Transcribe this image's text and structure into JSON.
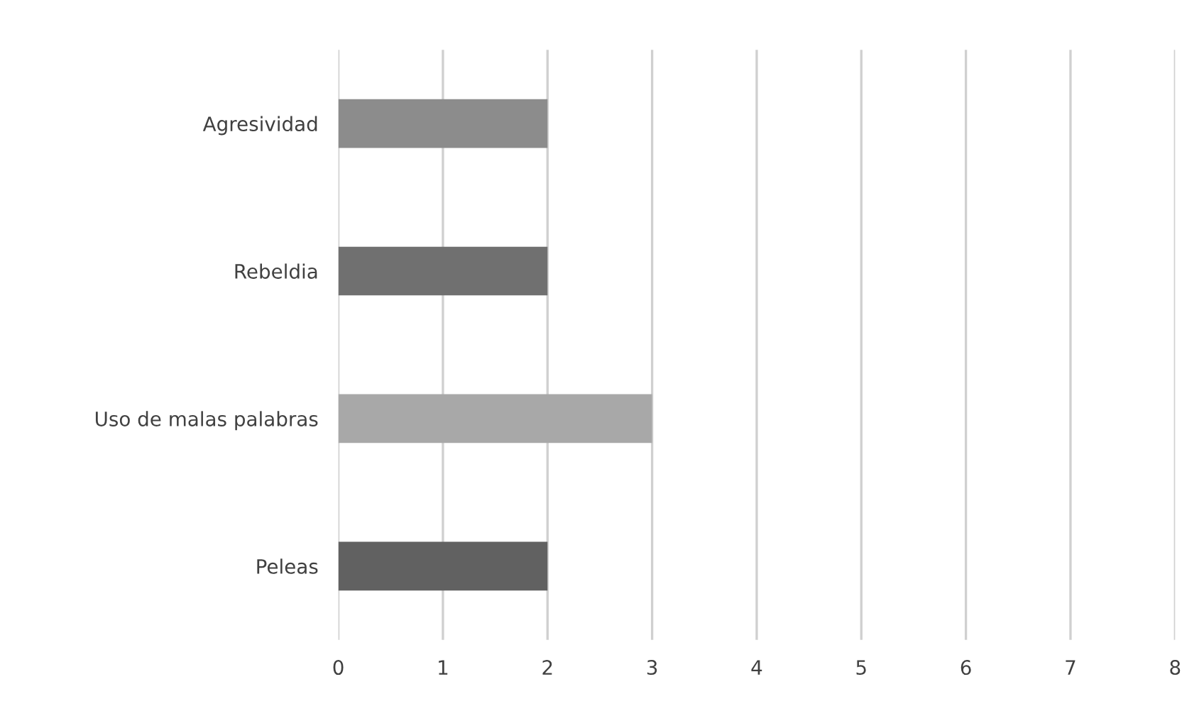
{
  "chart_data": {
    "type": "bar",
    "orientation": "horizontal",
    "categories": [
      "Agresividad",
      "Rebeldia",
      "Uso de malas palabras",
      "Peleas"
    ],
    "values": [
      2,
      2,
      3,
      2
    ],
    "colors": [
      "#8c8c8c",
      "#707070",
      "#a8a8a8",
      "#616161"
    ],
    "xlim": [
      0,
      8
    ],
    "xticks": [
      0,
      1,
      2,
      3,
      4,
      5,
      6,
      7,
      8
    ],
    "grid": "x"
  }
}
